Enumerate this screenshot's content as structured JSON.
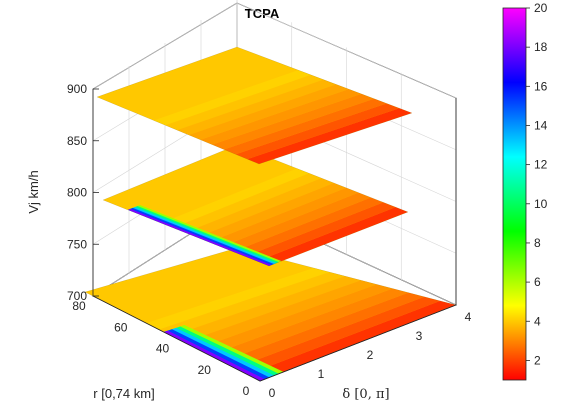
{
  "chart_data": {
    "type": "surface-contour-slices",
    "title": "TCPA",
    "xlabel": "r [0,74 km]",
    "ylabel": "δ [0, π]",
    "zlabel": "Vj km/h",
    "xlim": [
      0,
      80
    ],
    "ylim": [
      0,
      4
    ],
    "zlim": [
      700,
      900
    ],
    "xticks": [
      "0",
      "20",
      "40",
      "60",
      "80"
    ],
    "yticks": [
      "0",
      "1",
      "2",
      "3",
      "4"
    ],
    "zticks": [
      "700",
      "750",
      "800",
      "850",
      "900"
    ],
    "slices_at_z": [
      700,
      800,
      900
    ],
    "colormap": "hsv-like",
    "colorbar": {
      "min": 1,
      "max": 20,
      "ticks": [
        "2",
        "4",
        "6",
        "8",
        "10",
        "12",
        "14",
        "16",
        "18",
        "20"
      ],
      "stops": [
        "#ff0000",
        "#ff8000",
        "#ffff00",
        "#80ff00",
        "#00ff00",
        "#00ff80",
        "#00ffff",
        "#0080ff",
        "#0000ff",
        "#8000ff",
        "#ff00ff"
      ]
    },
    "grid": true
  }
}
